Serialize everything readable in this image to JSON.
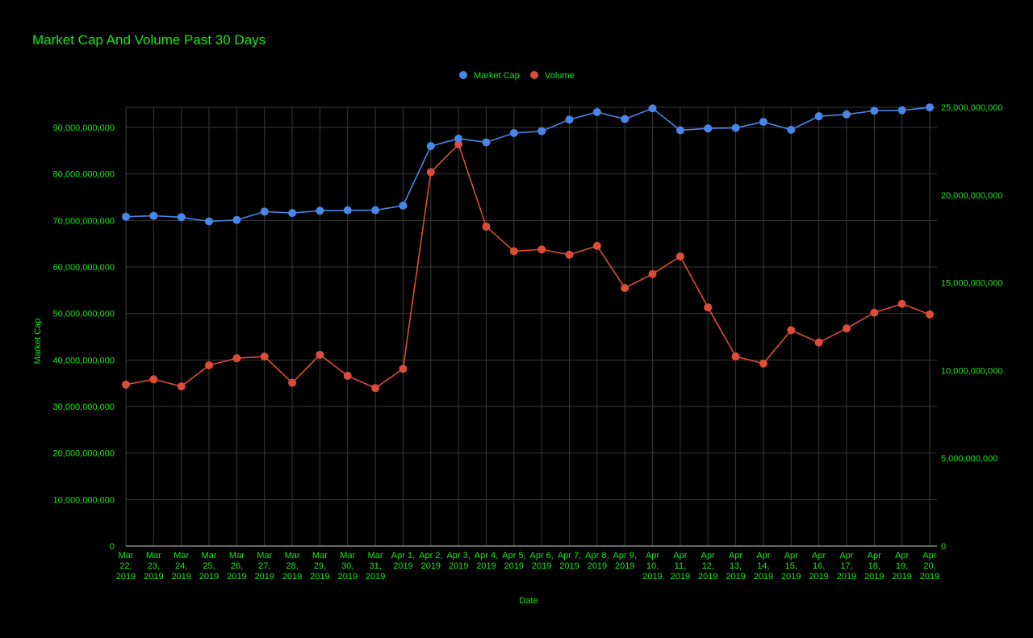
{
  "chart_data": {
    "type": "line",
    "title": "Market Cap And Volume Past 30 Days",
    "xlabel": "Date",
    "ylabel": "Market Cap",
    "y2label": "",
    "categories": [
      [
        "Mar",
        "22,",
        "2019"
      ],
      [
        "Mar",
        "23,",
        "2019"
      ],
      [
        "Mar",
        "24,",
        "2019"
      ],
      [
        "Mar",
        "25,",
        "2019"
      ],
      [
        "Mar",
        "26,",
        "2019"
      ],
      [
        "Mar",
        "27,",
        "2019"
      ],
      [
        "Mar",
        "28,",
        "2019"
      ],
      [
        "Mar",
        "29,",
        "2019"
      ],
      [
        "Mar",
        "30,",
        "2019"
      ],
      [
        "Mar",
        "31,",
        "2019"
      ],
      [
        "Apr 1,",
        "2019"
      ],
      [
        "Apr 2,",
        "2019"
      ],
      [
        "Apr 3,",
        "2019"
      ],
      [
        "Apr 4,",
        "2019"
      ],
      [
        "Apr 5,",
        "2019"
      ],
      [
        "Apr 6,",
        "2019"
      ],
      [
        "Apr 7,",
        "2019"
      ],
      [
        "Apr 8,",
        "2019"
      ],
      [
        "Apr 9,",
        "2019"
      ],
      [
        "Apr",
        "10,",
        "2019"
      ],
      [
        "Apr",
        "11,",
        "2019"
      ],
      [
        "Apr",
        "12,",
        "2019"
      ],
      [
        "Apr",
        "13,",
        "2019"
      ],
      [
        "Apr",
        "14,",
        "2019"
      ],
      [
        "Apr",
        "15,",
        "2019"
      ],
      [
        "Apr",
        "16,",
        "2019"
      ],
      [
        "Apr",
        "17,",
        "2019"
      ],
      [
        "Apr",
        "18,",
        "2019"
      ],
      [
        "Apr",
        "19,",
        "2019"
      ],
      [
        "Apr",
        "20,",
        "2019"
      ]
    ],
    "series": [
      {
        "name": "Market Cap",
        "axis": "left",
        "color": "#4a86e8",
        "values": [
          70800000000,
          71000000000,
          70700000000,
          69800000000,
          70100000000,
          71900000000,
          71600000000,
          72100000000,
          72200000000,
          72200000000,
          73200000000,
          86000000000,
          87600000000,
          86800000000,
          88800000000,
          89200000000,
          91700000000,
          93300000000,
          91800000000,
          94100000000,
          89400000000,
          89800000000,
          89900000000,
          91200000000,
          89500000000,
          92400000000,
          92800000000,
          93600000000,
          93700000000,
          94300000000
        ]
      },
      {
        "name": "Volume",
        "axis": "right",
        "color": "#dd4b39",
        "values": [
          9200000000,
          9500000000,
          9100000000,
          10300000000,
          10700000000,
          10800000000,
          9300000000,
          10900000000,
          9700000000,
          9000000000,
          10100000000,
          21300000000,
          22900000000,
          18200000000,
          16800000000,
          16900000000,
          16600000000,
          17100000000,
          14700000000,
          15500000000,
          16500000000,
          13600000000,
          10800000000,
          10400000000,
          12300000000,
          11600000000,
          12400000000,
          13300000000,
          13800000000,
          13200000000
        ]
      }
    ],
    "ylim": [
      0,
      90000000000
    ],
    "y2lim": [
      0,
      25000000000
    ],
    "yticks": [
      "0",
      "10,000,000,000",
      "20,000,000,000",
      "30,000,000,000",
      "40,000,000,000",
      "50,000,000,000",
      "60,000,000,000",
      "70,000,000,000",
      "80,000,000,000",
      "90,000,000,000"
    ],
    "y2ticks": [
      "0",
      "5,000,000,000",
      "10,000,000,000",
      "15,000,000,000",
      "20,000,000,000",
      "25,000,000,000"
    ],
    "grid": true,
    "legend_position": "top",
    "text_color": "#19e619",
    "background": "#000000"
  }
}
